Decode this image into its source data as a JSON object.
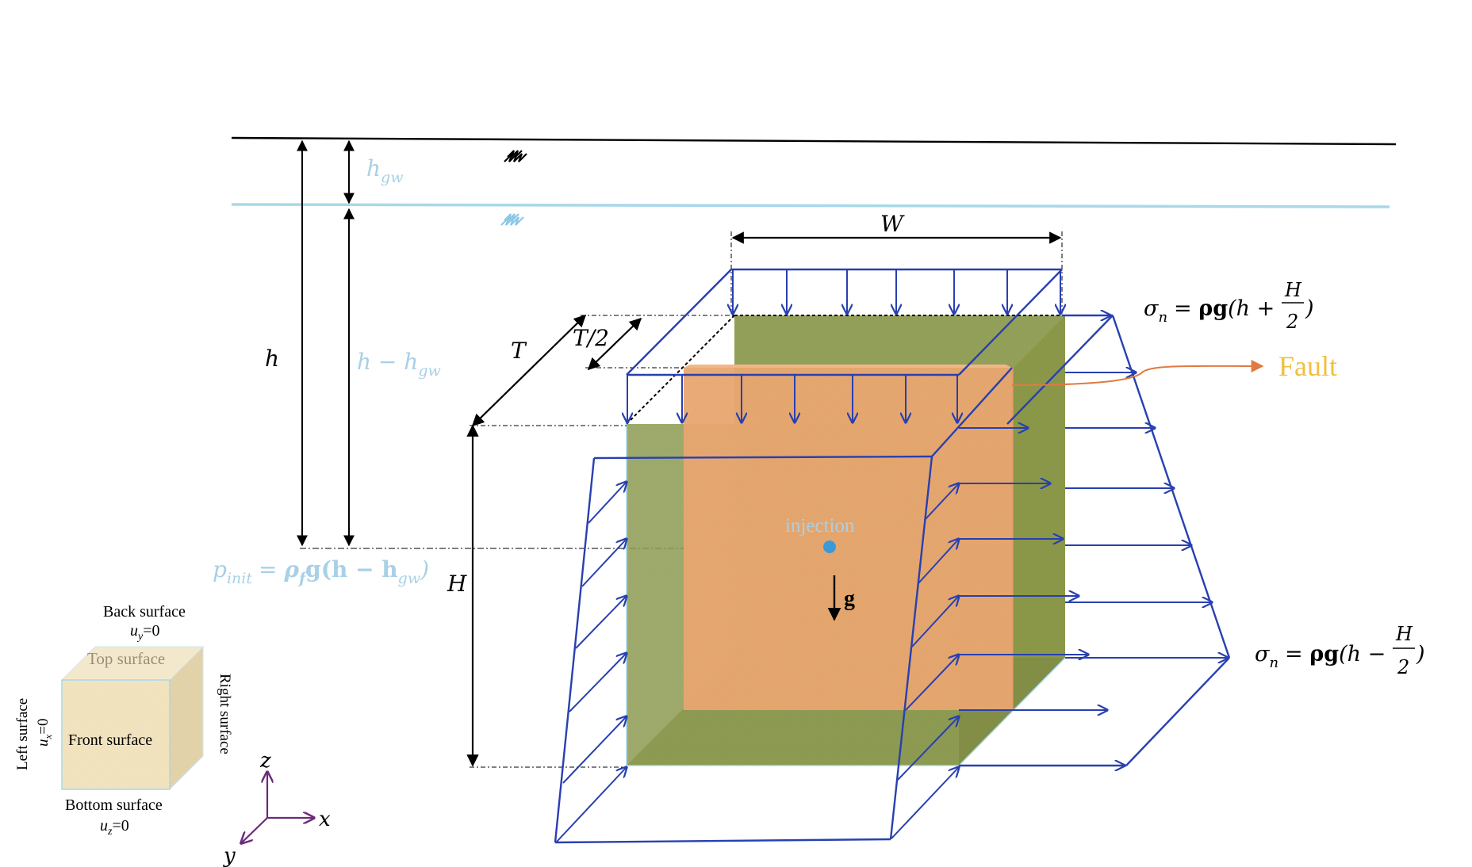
{
  "labels": {
    "h_gw": "h",
    "h_gw_sub": "gw",
    "h": "h",
    "h_minus_hgw_main": "h − h",
    "h_minus_hgw_sub": "gw",
    "W": "W",
    "T": "T",
    "T_half": "T/2",
    "H": "H",
    "g": "g",
    "injection": "injection",
    "fault": "Fault",
    "p_init_main": "p",
    "p_init_sub": "init",
    "p_init_eq": "= ",
    "p_init_rho": "ρ",
    "p_init_rho_sub": "f",
    "p_init_rest": "g(h − h",
    "p_init_sub2": "gw",
    "p_init_close": ")",
    "sigma_top_lhs": "σ",
    "sigma_top_lhs_sub": "n",
    "sigma_top_eq": "= ",
    "sigma_top_bold": "ρg",
    "sigma_top_rest": "(h +",
    "sigma_top_num": "H",
    "sigma_top_den": "2",
    "sigma_top_close": ")",
    "sigma_bot_lhs": "σ",
    "sigma_bot_lhs_sub": "n",
    "sigma_bot_eq": "= ",
    "sigma_bot_bold": "ρg",
    "sigma_bot_rest": "(h −",
    "sigma_bot_num": "H",
    "sigma_bot_den": "2",
    "sigma_bot_close": ")"
  },
  "legend": {
    "back_surface": "Back surface",
    "back_bc": "u",
    "back_bc_sub": "y",
    "back_bc_val": "=0",
    "top_surface": "Top surface",
    "front_surface": "Front surface",
    "left_surface": "Left surface",
    "left_bc": "u",
    "left_bc_sub": "x",
    "left_bc_val": "=0",
    "right_surface": "Right surface",
    "bottom_surface": "Bottom surface",
    "bottom_bc": "u",
    "bottom_bc_sub": "z",
    "bottom_bc_val": "=0"
  },
  "axes": {
    "x": "x",
    "y": "y",
    "z": "z"
  },
  "colors": {
    "ground_line": "#000000",
    "water_line": "#a8d8ea",
    "water_text": "#a8d0e6",
    "load_arrows": "#2840b0",
    "block_green": "#8a9a4a",
    "fault_orange": "#e8a46a",
    "fault_text": "#f0c040",
    "fault_leader": "#e07a40",
    "injection_dot": "#3a9ad9",
    "axis_purple": "#6a2a7a",
    "legend_cube": "#f0e0b8"
  }
}
